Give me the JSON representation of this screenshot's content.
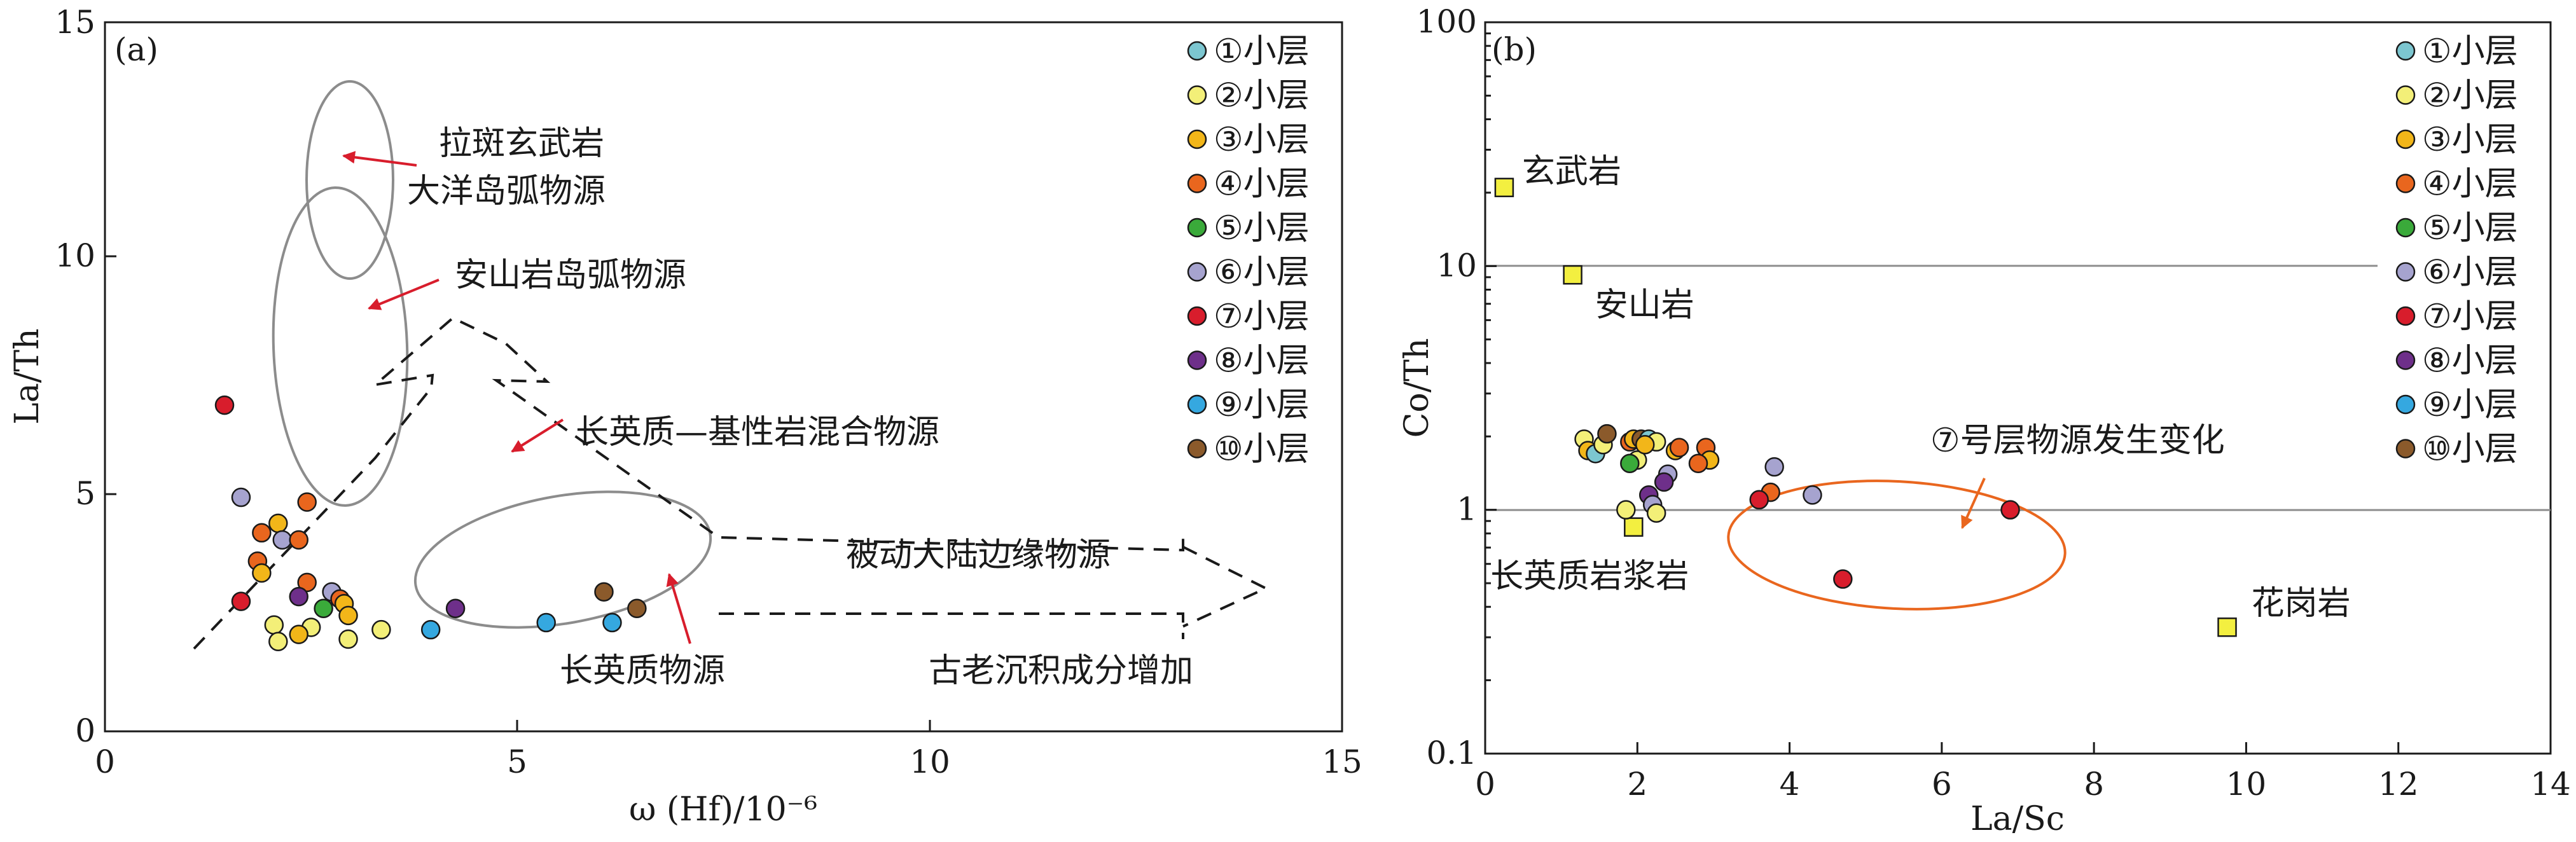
{
  "legend_labels": [
    "①小层",
    "②小层",
    "③小层",
    "④小层",
    "⑤小层",
    "⑥小层",
    "⑦小层",
    "⑧小层",
    "⑨小层",
    "⑩小层"
  ],
  "layer_colors": [
    "#7cc6d0",
    "#f3ef78",
    "#f2b619",
    "#e9661e",
    "#3aaa3a",
    "#a6a3cf",
    "#d81d2c",
    "#6e2f8a",
    "#35a8e0",
    "#8b5a2b"
  ],
  "chart_data": [
    {
      "panel": "(a)",
      "type": "scatter",
      "xlabel": "ω (Hf)/10⁻⁶",
      "ylabel": "La/Th",
      "xlim": [
        0,
        15
      ],
      "ylim": [
        0,
        15
      ],
      "xticks": [
        "0",
        "5",
        "10",
        "15"
      ],
      "yticks": [
        "0",
        "5",
        "10",
        "15"
      ],
      "points": [
        {
          "layer": 7,
          "x": 1.45,
          "y": 6.9
        },
        {
          "layer": 6,
          "x": 1.65,
          "y": 4.95
        },
        {
          "layer": 4,
          "x": 2.45,
          "y": 4.85
        },
        {
          "layer": 4,
          "x": 1.9,
          "y": 4.2
        },
        {
          "layer": 3,
          "x": 2.1,
          "y": 4.4
        },
        {
          "layer": 6,
          "x": 2.15,
          "y": 4.05
        },
        {
          "layer": 4,
          "x": 2.35,
          "y": 4.05
        },
        {
          "layer": 4,
          "x": 1.85,
          "y": 3.6
        },
        {
          "layer": 3,
          "x": 1.9,
          "y": 3.35
        },
        {
          "layer": 4,
          "x": 2.45,
          "y": 3.15
        },
        {
          "layer": 7,
          "x": 1.65,
          "y": 2.75
        },
        {
          "layer": 6,
          "x": 2.75,
          "y": 2.95
        },
        {
          "layer": 8,
          "x": 2.35,
          "y": 2.85
        },
        {
          "layer": 4,
          "x": 2.85,
          "y": 2.8
        },
        {
          "layer": 3,
          "x": 2.9,
          "y": 2.7
        },
        {
          "layer": 5,
          "x": 2.65,
          "y": 2.6
        },
        {
          "layer": 3,
          "x": 2.95,
          "y": 2.45
        },
        {
          "layer": 2,
          "x": 2.05,
          "y": 2.25
        },
        {
          "layer": 2,
          "x": 2.5,
          "y": 2.2
        },
        {
          "layer": 3,
          "x": 2.35,
          "y": 2.05
        },
        {
          "layer": 2,
          "x": 2.1,
          "y": 1.9
        },
        {
          "layer": 2,
          "x": 2.95,
          "y": 1.95
        },
        {
          "layer": 2,
          "x": 3.35,
          "y": 2.15
        },
        {
          "layer": 9,
          "x": 3.95,
          "y": 2.15
        },
        {
          "layer": 8,
          "x": 4.25,
          "y": 2.6
        },
        {
          "layer": 9,
          "x": 5.35,
          "y": 2.3
        },
        {
          "layer": 9,
          "x": 6.15,
          "y": 2.3
        },
        {
          "layer": 10,
          "x": 6.05,
          "y": 2.95
        },
        {
          "layer": 10,
          "x": 6.45,
          "y": 2.6
        }
      ],
      "annotations": [
        "拉斑玄武岩",
        "大洋岛弧物源",
        "安山岩岛弧物源",
        "长英质—基性岩混合物源",
        "被动大陆边缘物源",
        "长英质物源",
        "古老沉积成分增加"
      ]
    },
    {
      "panel": "(b)",
      "type": "scatter",
      "xlabel": "La/Sc",
      "ylabel": "Co/Th",
      "xlim": [
        0,
        14
      ],
      "ylim": [
        0.1,
        100
      ],
      "yscale": "log",
      "xticks": [
        "0",
        "2",
        "4",
        "6",
        "8",
        "10",
        "12",
        "14"
      ],
      "yticks": [
        "0.1",
        "1",
        "10",
        "100"
      ],
      "reference_points": [
        {
          "label": "玄武岩",
          "x": 0.25,
          "y": 21
        },
        {
          "label": "安山岩",
          "x": 1.15,
          "y": 9.2
        },
        {
          "label": "长英质岩浆岩",
          "x": 1.95,
          "y": 0.85
        },
        {
          "label": "花岗岩",
          "x": 9.75,
          "y": 0.33
        }
      ],
      "points": [
        {
          "layer": 2,
          "x": 1.3,
          "y": 1.95
        },
        {
          "layer": 3,
          "x": 1.35,
          "y": 1.75
        },
        {
          "layer": 1,
          "x": 1.45,
          "y": 1.7
        },
        {
          "layer": 2,
          "x": 1.55,
          "y": 1.85
        },
        {
          "layer": 10,
          "x": 1.6,
          "y": 2.05
        },
        {
          "layer": 4,
          "x": 1.9,
          "y": 1.9
        },
        {
          "layer": 3,
          "x": 1.95,
          "y": 1.95
        },
        {
          "layer": 2,
          "x": 2.0,
          "y": 1.6
        },
        {
          "layer": 5,
          "x": 1.9,
          "y": 1.55
        },
        {
          "layer": 10,
          "x": 2.05,
          "y": 1.95
        },
        {
          "layer": 1,
          "x": 2.15,
          "y": 1.95
        },
        {
          "layer": 2,
          "x": 2.25,
          "y": 1.9
        },
        {
          "layer": 3,
          "x": 2.1,
          "y": 1.85
        },
        {
          "layer": 3,
          "x": 2.5,
          "y": 1.75
        },
        {
          "layer": 4,
          "x": 2.9,
          "y": 1.8
        },
        {
          "layer": 3,
          "x": 2.95,
          "y": 1.6
        },
        {
          "layer": 4,
          "x": 2.8,
          "y": 1.55
        },
        {
          "layer": 4,
          "x": 2.55,
          "y": 1.8
        },
        {
          "layer": 6,
          "x": 2.4,
          "y": 1.4
        },
        {
          "layer": 8,
          "x": 2.35,
          "y": 1.3
        },
        {
          "layer": 8,
          "x": 2.15,
          "y": 1.15
        },
        {
          "layer": 6,
          "x": 2.2,
          "y": 1.05
        },
        {
          "layer": 2,
          "x": 1.85,
          "y": 1.0
        },
        {
          "layer": 2,
          "x": 2.25,
          "y": 0.97
        },
        {
          "layer": 6,
          "x": 3.8,
          "y": 1.5
        },
        {
          "layer": 4,
          "x": 3.75,
          "y": 1.18
        },
        {
          "layer": 7,
          "x": 3.6,
          "y": 1.1
        },
        {
          "layer": 6,
          "x": 4.3,
          "y": 1.15
        },
        {
          "layer": 7,
          "x": 6.9,
          "y": 1.0
        },
        {
          "layer": 7,
          "x": 4.7,
          "y": 0.52
        }
      ],
      "hlines": [
        1,
        10
      ],
      "annotations": [
        "⑦号层物源发生变化"
      ]
    }
  ]
}
